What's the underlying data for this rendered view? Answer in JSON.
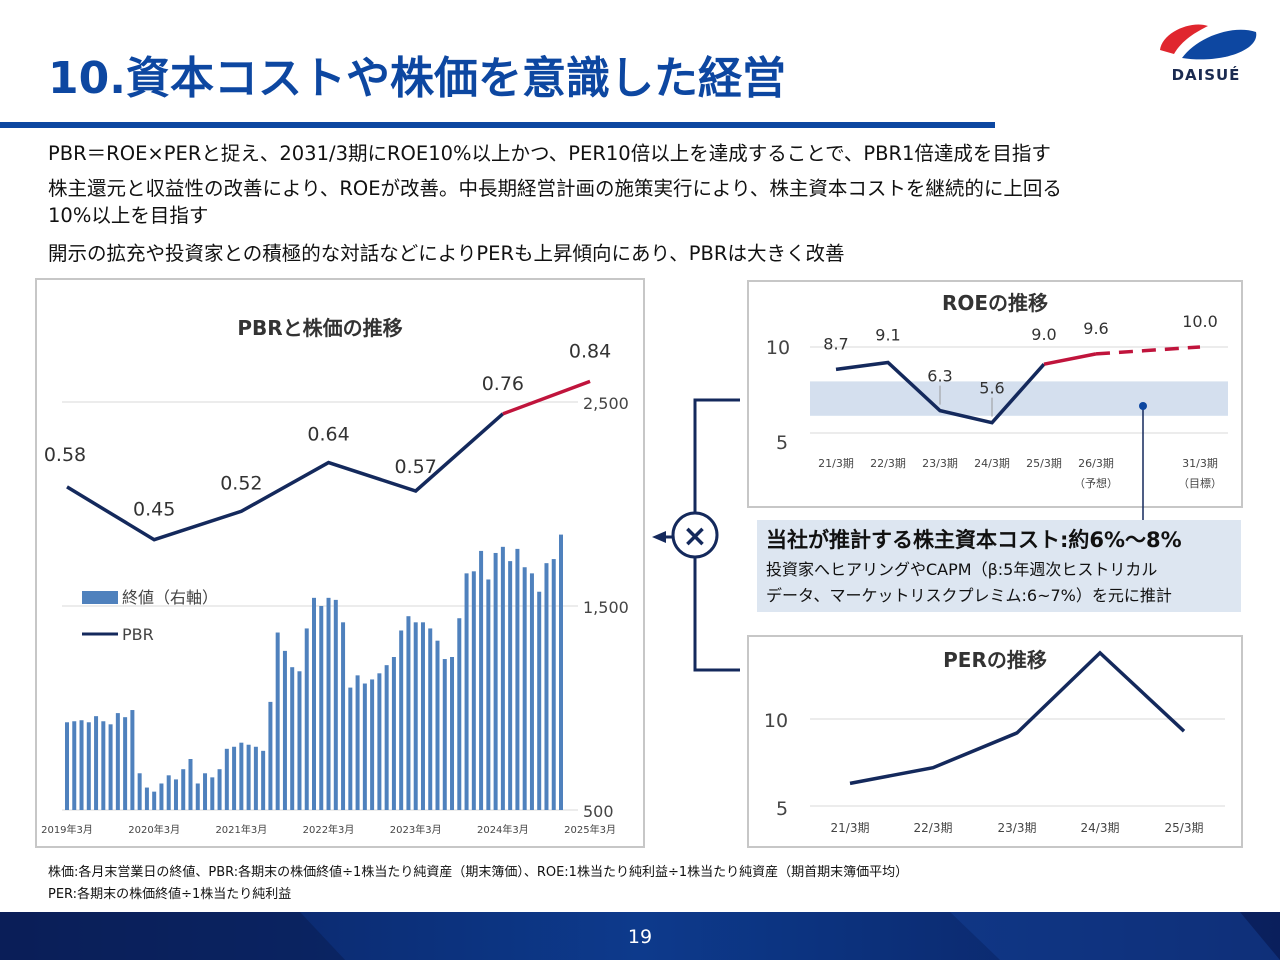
{
  "header": {
    "title": "10.資本コストや株価を意識した経営",
    "logo_text": "DAISUÉ"
  },
  "bullets": [
    "PBR＝ROE×PERと捉え、2031/3期にROE10%以上かつ、PER10倍以上を達成することで、PBR1倍達成を目指す",
    "株主還元と収益性の改善により、ROEが改善。中長期経営計画の施策実行により、株主資本コストを継続的に上回る",
    "10%以上を目指す",
    "開示の拡充や投資家との積極的な対話などによりPERも上昇傾向にあり、PBRは大きく改善"
  ],
  "cost_box": {
    "title": "当社が推計する株主資本コスト:約6%～8%",
    "line1": "投資家へヒアリングやCAPM（β:5年週次ヒストリカル",
    "line2": "データ、マーケットリスクプレミム:6~7%）を元に推計"
  },
  "multiply_symbol": "×",
  "footnote": {
    "line1": "株価:各月末営業日の終値、PBR:各期末の株価終値÷1株当たり純資産（期末簿価）、ROE:1株当たり純利益÷1株当たり純資産（期首期末簿価平均）",
    "line2": "PER:各期末の株価終値÷1株当たり純利益"
  },
  "page_number": "19",
  "colors": {
    "brand_blue": "#0d47a1",
    "navy_line": "#14295c",
    "red_line": "#c0143c",
    "bar_blue": "#4f81bd",
    "band": "#c9d7ea",
    "logo_red": "#e0262e"
  },
  "chart_data": [
    {
      "type": "bar",
      "title": "PBRと株価の推移",
      "x_tick_labels": [
        "2019年3月",
        "2020年3月",
        "2021年3月",
        "2022年3月",
        "2023年3月",
        "2024年3月",
        "2025年3月"
      ],
      "y_right_ticks": [
        "2,500",
        "1,500",
        "500"
      ],
      "y_right_range": [
        500,
        2500
      ],
      "legend": [
        "終値（右軸）",
        "PBR"
      ],
      "series": [
        {
          "name": "終値（右軸）",
          "axis": "right",
          "values": [
            930,
            935,
            940,
            930,
            960,
            935,
            920,
            975,
            955,
            990,
            680,
            610,
            590,
            630,
            670,
            650,
            700,
            750,
            630,
            680,
            660,
            700,
            800,
            810,
            830,
            820,
            810,
            790,
            1030,
            1370,
            1280,
            1200,
            1180,
            1390,
            1540,
            1500,
            1540,
            1530,
            1420,
            1100,
            1160,
            1120,
            1140,
            1170,
            1210,
            1250,
            1380,
            1450,
            1420,
            1420,
            1390,
            1330,
            1240,
            1250,
            1440,
            1660,
            1670,
            1770,
            1630,
            1760,
            1790,
            1720,
            1780,
            1690,
            1660,
            1570,
            1710,
            1730,
            1850
          ]
        },
        {
          "name": "PBR",
          "axis": "left",
          "x": [
            "2019年3月",
            "2020年3月",
            "2021年3月",
            "2022年3月",
            "2023年3月",
            "2024年3月",
            "2025年3月"
          ],
          "values": [
            0.58,
            0.45,
            0.52,
            0.64,
            0.57,
            0.76,
            0.84
          ]
        }
      ]
    },
    {
      "type": "line",
      "title": "ROEの推移",
      "categories": [
        "21/3期",
        "22/3期",
        "23/3期",
        "24/3期",
        "25/3期",
        "26/3期",
        "31/3期"
      ],
      "category_sublabels": [
        "",
        "",
        "",
        "",
        "",
        "（予想）",
        "（目標）"
      ],
      "values": [
        8.7,
        9.1,
        6.3,
        5.6,
        9.0,
        9.6,
        10.0
      ],
      "value_labels": [
        "8.7",
        "9.1",
        "6.3",
        "5.6",
        "9.0",
        "9.6",
        "10.0"
      ],
      "y_ticks": [
        "10",
        "5"
      ],
      "ylim": [
        4,
        12
      ],
      "cost_of_equity_band": [
        6,
        8
      ]
    },
    {
      "type": "line",
      "title": "PERの推移",
      "categories": [
        "21/3期",
        "22/3期",
        "23/3期",
        "24/3期",
        "25/3期"
      ],
      "values": [
        6.3,
        7.2,
        9.2,
        13.8,
        9.3
      ],
      "y_ticks": [
        "10",
        "5"
      ],
      "ylim": [
        4,
        16
      ]
    }
  ]
}
